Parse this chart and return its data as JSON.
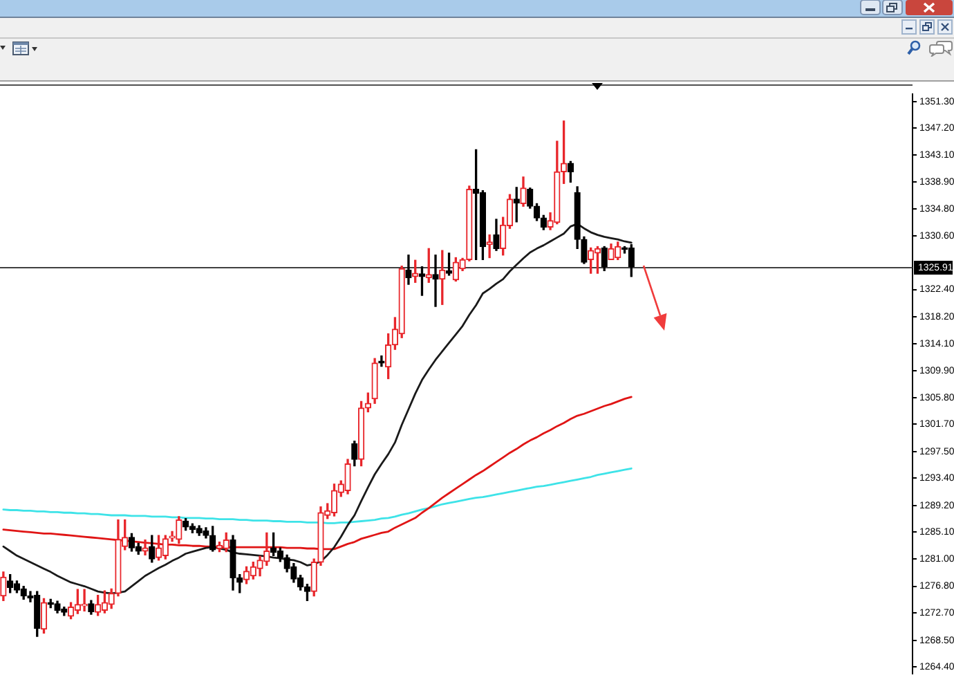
{
  "chart_data": {
    "type": "candlestick",
    "categories": [
      null,
      null,
      null,
      null,
      null,
      null,
      null,
      null,
      null,
      null,
      null,
      null,
      null,
      null,
      null,
      null,
      null,
      null,
      null,
      null,
      null,
      null,
      null,
      null,
      null,
      null,
      null,
      null,
      null,
      null,
      null,
      null,
      null,
      null,
      null,
      null,
      null,
      null,
      null,
      null,
      null,
      null,
      null,
      null,
      null,
      null,
      null,
      null,
      null,
      null,
      null,
      null,
      null,
      null,
      null,
      null,
      null,
      null,
      null,
      null,
      null,
      null,
      null,
      null,
      null,
      null,
      null,
      null,
      null,
      null,
      null,
      null,
      null,
      null,
      null,
      null,
      null,
      null,
      null,
      null,
      null,
      null,
      null,
      null,
      null,
      null,
      null,
      null,
      null,
      null,
      null,
      null,
      null,
      null
    ],
    "ohlc": [
      [
        1275.3,
        1279.0,
        1274.6,
        1278.2
      ],
      [
        1277.6,
        1278.6,
        1275.8,
        1276.6
      ],
      [
        1277.2,
        1277.6,
        1275.8,
        1276.2
      ],
      [
        1276.4,
        1276.8,
        1274.8,
        1275.3
      ],
      [
        1275.3,
        1276.0,
        1274.4,
        1275.0
      ],
      [
        1275.4,
        1276.0,
        1269.1,
        1270.3
      ],
      [
        1270.2,
        1274.9,
        1269.6,
        1274.3
      ],
      [
        1274.3,
        1274.8,
        1273.5,
        1274.0
      ],
      [
        1274.1,
        1274.5,
        1272.7,
        1273.1
      ],
      [
        1273.3,
        1273.6,
        1272.3,
        1272.8
      ],
      [
        1272.2,
        1274.3,
        1271.8,
        1273.6
      ],
      [
        1273.1,
        1276.3,
        1272.6,
        1274.0
      ],
      [
        1273.8,
        1276.3,
        1273.0,
        1274.0
      ],
      [
        1274.1,
        1274.6,
        1272.5,
        1272.9
      ],
      [
        1272.8,
        1275.4,
        1272.3,
        1274.0
      ],
      [
        1273.1,
        1276.1,
        1272.7,
        1274.3
      ],
      [
        1274.0,
        1276.4,
        1273.4,
        1275.7
      ],
      [
        1275.7,
        1287.0,
        1275.3,
        1284.0
      ],
      [
        1282.9,
        1287.0,
        1282.4,
        1284.3
      ],
      [
        1284.3,
        1284.9,
        1282.2,
        1282.7
      ],
      [
        1282.9,
        1283.4,
        1281.7,
        1282.2
      ],
      [
        1282.2,
        1283.9,
        1281.6,
        1282.7
      ],
      [
        1282.9,
        1284.6,
        1280.5,
        1281.0
      ],
      [
        1281.2,
        1284.6,
        1280.8,
        1282.7
      ],
      [
        1281.5,
        1284.6,
        1281.0,
        1284.1
      ],
      [
        1284.2,
        1285.2,
        1283.7,
        1284.5
      ],
      [
        1284.0,
        1287.5,
        1283.4,
        1287.0
      ],
      [
        1286.8,
        1287.2,
        1285.4,
        1285.9
      ],
      [
        1286.0,
        1286.4,
        1285.0,
        1285.5
      ],
      [
        1285.7,
        1286.1,
        1284.6,
        1285.0
      ],
      [
        1285.3,
        1285.8,
        1284.2,
        1284.6
      ],
      [
        1284.6,
        1286.0,
        1282.2,
        1282.4
      ],
      [
        1282.6,
        1283.6,
        1282.1,
        1283.1
      ],
      [
        1282.6,
        1285.0,
        1282.1,
        1283.9
      ],
      [
        1283.9,
        1284.6,
        1276.2,
        1278.1
      ],
      [
        1278.1,
        1278.6,
        1275.8,
        1277.4
      ],
      [
        1277.8,
        1279.8,
        1277.2,
        1279.1
      ],
      [
        1278.4,
        1280.5,
        1277.9,
        1279.8
      ],
      [
        1279.5,
        1281.4,
        1278.4,
        1280.8
      ],
      [
        1280.6,
        1285.0,
        1280.0,
        1282.2
      ],
      [
        1282.7,
        1285.0,
        1281.5,
        1282.0
      ],
      [
        1282.2,
        1282.7,
        1280.6,
        1281.2
      ],
      [
        1281.2,
        1281.6,
        1279.0,
        1279.5
      ],
      [
        1279.8,
        1280.3,
        1277.4,
        1277.9
      ],
      [
        1278.1,
        1278.5,
        1276.2,
        1276.7
      ],
      [
        1276.7,
        1277.1,
        1274.6,
        1276.0
      ],
      [
        1276.0,
        1281.0,
        1275.3,
        1280.5
      ],
      [
        1280.5,
        1289.0,
        1280.0,
        1288.1
      ],
      [
        1287.7,
        1289.5,
        1287.2,
        1288.4
      ],
      [
        1288.1,
        1292.5,
        1287.6,
        1291.5
      ],
      [
        1291.2,
        1293.0,
        1290.6,
        1292.5
      ],
      [
        1291.5,
        1296.3,
        1291.0,
        1295.6
      ],
      [
        1298.7,
        1299.1,
        1295.3,
        1296.3
      ],
      [
        1296.3,
        1305.2,
        1295.3,
        1304.2
      ],
      [
        1304.2,
        1306.5,
        1303.6,
        1304.9
      ],
      [
        1305.6,
        1311.8,
        1304.9,
        1311.1
      ],
      [
        1311.4,
        1312.2,
        1310.6,
        1311.1
      ],
      [
        1310.5,
        1315.6,
        1308.7,
        1313.9
      ],
      [
        1313.9,
        1318.1,
        1313.2,
        1316.3
      ],
      [
        1315.6,
        1326.0,
        1315.0,
        1325.6
      ],
      [
        1325.4,
        1327.7,
        1323.2,
        1324.2
      ],
      [
        1324.4,
        1326.9,
        1323.5,
        1324.9
      ],
      [
        1324.8,
        1325.9,
        1321.5,
        1324.4
      ],
      [
        1324.2,
        1328.7,
        1323.5,
        1324.7
      ],
      [
        1324.7,
        1327.7,
        1319.8,
        1324.0
      ],
      [
        1324.0,
        1328.4,
        1320.1,
        1325.4
      ],
      [
        1325.3,
        1328.0,
        1324.6,
        1324.9
      ],
      [
        1323.9,
        1327.3,
        1323.7,
        1326.6
      ],
      [
        1325.6,
        1327.2,
        1325.3,
        1327.0
      ],
      [
        1327.0,
        1338.3,
        1326.8,
        1337.8
      ],
      [
        1337.8,
        1343.9,
        1327.0,
        1337.2
      ],
      [
        1337.3,
        1337.6,
        1327.0,
        1329.0
      ],
      [
        1329.3,
        1330.8,
        1327.3,
        1329.7
      ],
      [
        1330.8,
        1333.2,
        1328.4,
        1328.7
      ],
      [
        1328.7,
        1333.5,
        1327.7,
        1332.3
      ],
      [
        1332.2,
        1337.0,
        1331.8,
        1336.3
      ],
      [
        1336.3,
        1338.1,
        1332.8,
        1335.7
      ],
      [
        1335.6,
        1339.7,
        1335.2,
        1338.0
      ],
      [
        1337.8,
        1338.0,
        1334.9,
        1335.2
      ],
      [
        1335.2,
        1335.6,
        1333.0,
        1333.4
      ],
      [
        1333.4,
        1333.8,
        1331.6,
        1332.0
      ],
      [
        1332.0,
        1334.2,
        1331.6,
        1333.0
      ],
      [
        1332.7,
        1345.2,
        1332.5,
        1340.5
      ],
      [
        1340.5,
        1348.3,
        1338.7,
        1341.8
      ],
      [
        1341.8,
        1342.1,
        1338.9,
        1340.5
      ],
      [
        1337.3,
        1338.2,
        1328.7,
        1330.1
      ],
      [
        1330.1,
        1330.5,
        1326.4,
        1326.6
      ],
      [
        1327.0,
        1328.8,
        1324.9,
        1328.4
      ],
      [
        1328.0,
        1329.0,
        1324.9,
        1328.7
      ],
      [
        1328.8,
        1329.0,
        1325.3,
        1325.9
      ],
      [
        1327.0,
        1329.4,
        1327.0,
        1328.7
      ],
      [
        1327.3,
        1329.7,
        1327.0,
        1329.0
      ],
      [
        1328.7,
        1329.0,
        1328.0,
        1328.6
      ],
      [
        1328.8,
        1329.3,
        1324.4,
        1325.9
      ]
    ],
    "colors": [
      "#e8262b",
      "#000000",
      "#000000",
      "#000000",
      "#000000",
      "#000000",
      "#e8262b",
      "#000000",
      "#000000",
      "#000000",
      "#e8262b",
      "#e8262b",
      "#e8262b",
      "#000000",
      "#e8262b",
      "#e8262b",
      "#e8262b",
      "#e8262b",
      "#e8262b",
      "#000000",
      "#000000",
      "#e8262b",
      "#000000",
      "#e8262b",
      "#e8262b",
      "#e8262b",
      "#e8262b",
      "#000000",
      "#000000",
      "#000000",
      "#000000",
      "#000000",
      "#e8262b",
      "#e8262b",
      "#000000",
      "#000000",
      "#e8262b",
      "#e8262b",
      "#e8262b",
      "#e8262b",
      "#000000",
      "#000000",
      "#000000",
      "#000000",
      "#000000",
      "#000000",
      "#e8262b",
      "#e8262b",
      "#e8262b",
      "#e8262b",
      "#e8262b",
      "#e8262b",
      "#000000",
      "#e8262b",
      "#e8262b",
      "#e8262b",
      "#000000",
      "#e8262b",
      "#e8262b",
      "#e8262b",
      "#000000",
      "#e8262b",
      "#000000",
      "#e8262b",
      "#000000",
      "#e8262b",
      "#000000",
      "#e8262b",
      "#e8262b",
      "#e8262b",
      "#000000",
      "#000000",
      "#e8262b",
      "#000000",
      "#e8262b",
      "#e8262b",
      "#000000",
      "#e8262b",
      "#000000",
      "#000000",
      "#000000",
      "#e8262b",
      "#e8262b",
      "#e8262b",
      "#000000",
      "#000000",
      "#000000",
      "#e8262b",
      "#e8262b",
      "#000000",
      "#e8262b",
      "#e8262b",
      "#000000",
      "#000000"
    ],
    "series": [
      {
        "type": "line",
        "color": "#1a1a1a",
        "values": [
          1282.9,
          1282.2,
          1281.5,
          1281.0,
          1280.5,
          1280.0,
          1279.5,
          1279.0,
          1278.4,
          1277.9,
          1277.4,
          1277.1,
          1276.8,
          1276.4,
          1276.0,
          1275.8,
          1275.7,
          1275.8,
          1276.0,
          1276.8,
          1277.6,
          1278.4,
          1279.0,
          1279.6,
          1280.1,
          1280.7,
          1281.2,
          1281.8,
          1282.1,
          1282.4,
          1282.7,
          1282.8,
          1282.6,
          1282.4,
          1282.0,
          1281.8,
          1281.7,
          1281.6,
          1281.5,
          1281.4,
          1281.2,
          1281.1,
          1280.9,
          1280.8,
          1280.5,
          1280.0,
          1280.2,
          1280.6,
          1281.6,
          1282.8,
          1284.4,
          1286.2,
          1287.7,
          1289.9,
          1292.0,
          1294.0,
          1295.6,
          1297.1,
          1298.9,
          1301.6,
          1304.0,
          1306.4,
          1308.5,
          1310.1,
          1311.6,
          1312.9,
          1314.2,
          1315.5,
          1316.8,
          1318.5,
          1320.0,
          1321.8,
          1322.5,
          1323.3,
          1324.0,
          1325.2,
          1326.2,
          1327.2,
          1328.1,
          1328.7,
          1329.2,
          1329.8,
          1330.4,
          1331.0,
          1332.1,
          1332.5,
          1331.8,
          1331.2,
          1330.8,
          1330.5,
          1330.3,
          1330.1,
          1329.8,
          1329.6
        ]
      },
      {
        "type": "line",
        "color": "#e01515",
        "values": [
          1285.5,
          1285.4,
          1285.3,
          1285.2,
          1285.1,
          1285.0,
          1284.9,
          1284.9,
          1284.8,
          1284.7,
          1284.6,
          1284.5,
          1284.4,
          1284.3,
          1284.2,
          1284.1,
          1284.0,
          1283.9,
          1283.8,
          1283.7,
          1283.6,
          1283.5,
          1283.4,
          1283.3,
          1283.2,
          1283.2,
          1283.1,
          1283.1,
          1283.0,
          1283.0,
          1282.9,
          1282.9,
          1282.8,
          1282.8,
          1282.8,
          1282.8,
          1282.8,
          1282.8,
          1282.8,
          1282.8,
          1282.8,
          1282.8,
          1282.7,
          1282.7,
          1282.7,
          1282.6,
          1282.6,
          1282.5,
          1282.5,
          1282.5,
          1282.9,
          1283.3,
          1283.6,
          1284.1,
          1284.4,
          1284.7,
          1285.0,
          1285.2,
          1285.8,
          1286.3,
          1286.8,
          1287.3,
          1288.1,
          1288.8,
          1289.6,
          1290.4,
          1291.1,
          1291.8,
          1292.5,
          1293.2,
          1293.9,
          1294.5,
          1295.2,
          1295.9,
          1296.6,
          1297.3,
          1297.9,
          1298.6,
          1299.2,
          1299.7,
          1300.3,
          1300.8,
          1301.4,
          1301.9,
          1302.5,
          1303.0,
          1303.3,
          1303.7,
          1304.1,
          1304.5,
          1304.8,
          1305.2,
          1305.6,
          1305.9
        ]
      },
      {
        "type": "line",
        "color": "#3ee3e8",
        "values": [
          1288.6,
          1288.5,
          1288.5,
          1288.4,
          1288.4,
          1288.3,
          1288.3,
          1288.2,
          1288.2,
          1288.1,
          1288.1,
          1288.0,
          1288.0,
          1287.9,
          1287.9,
          1287.8,
          1287.7,
          1287.7,
          1287.7,
          1287.6,
          1287.6,
          1287.6,
          1287.5,
          1287.5,
          1287.5,
          1287.4,
          1287.4,
          1287.3,
          1287.3,
          1287.3,
          1287.2,
          1287.2,
          1287.1,
          1287.1,
          1287.1,
          1287.0,
          1287.0,
          1286.9,
          1286.9,
          1286.9,
          1286.8,
          1286.8,
          1286.7,
          1286.7,
          1286.7,
          1286.6,
          1286.6,
          1286.6,
          1286.5,
          1286.5,
          1286.6,
          1286.6,
          1286.7,
          1286.8,
          1286.9,
          1287.0,
          1287.2,
          1287.3,
          1287.5,
          1287.8,
          1288.0,
          1288.3,
          1288.6,
          1288.8,
          1289.1,
          1289.4,
          1289.6,
          1289.8,
          1290.0,
          1290.2,
          1290.4,
          1290.5,
          1290.7,
          1290.9,
          1291.1,
          1291.3,
          1291.5,
          1291.7,
          1291.9,
          1292.1,
          1292.2,
          1292.4,
          1292.6,
          1292.8,
          1293.0,
          1293.2,
          1293.4,
          1293.6,
          1293.9,
          1294.1,
          1294.3,
          1294.5,
          1294.7,
          1294.9
        ]
      }
    ],
    "ylim": [
      1263.4,
      1352.4
    ],
    "yticks": [
      {
        "value": 1351.3,
        "label": "1351.30"
      },
      {
        "value": 1347.2,
        "label": "1347.20"
      },
      {
        "value": 1343.1,
        "label": "1343.10"
      },
      {
        "value": 1338.9,
        "label": "1338.90"
      },
      {
        "value": 1334.8,
        "label": "1334.80"
      },
      {
        "value": 1330.6,
        "label": "1330.60"
      },
      {
        "value": 1322.4,
        "label": "1322.40"
      },
      {
        "value": 1318.2,
        "label": "1318.20"
      },
      {
        "value": 1314.1,
        "label": "1314.10"
      },
      {
        "value": 1309.9,
        "label": "1309.90"
      },
      {
        "value": 1305.8,
        "label": "1305.80"
      },
      {
        "value": 1301.7,
        "label": "1301.70"
      },
      {
        "value": 1297.5,
        "label": "1297.50"
      },
      {
        "value": 1293.4,
        "label": "1293.40"
      },
      {
        "value": 1289.2,
        "label": "1289.20"
      },
      {
        "value": 1285.1,
        "label": "1285.10"
      },
      {
        "value": 1281.0,
        "label": "1281.00"
      },
      {
        "value": 1276.8,
        "label": "1276.80"
      },
      {
        "value": 1272.7,
        "label": "1272.70"
      },
      {
        "value": 1268.5,
        "label": "1268.50"
      },
      {
        "value": 1264.4,
        "label": "1264.40"
      }
    ],
    "tick_labels": "y",
    "ref_lines": [
      {
        "axis": "y",
        "value": 1325.91,
        "label": "1325.91",
        "color": "#404040"
      }
    ]
  }
}
